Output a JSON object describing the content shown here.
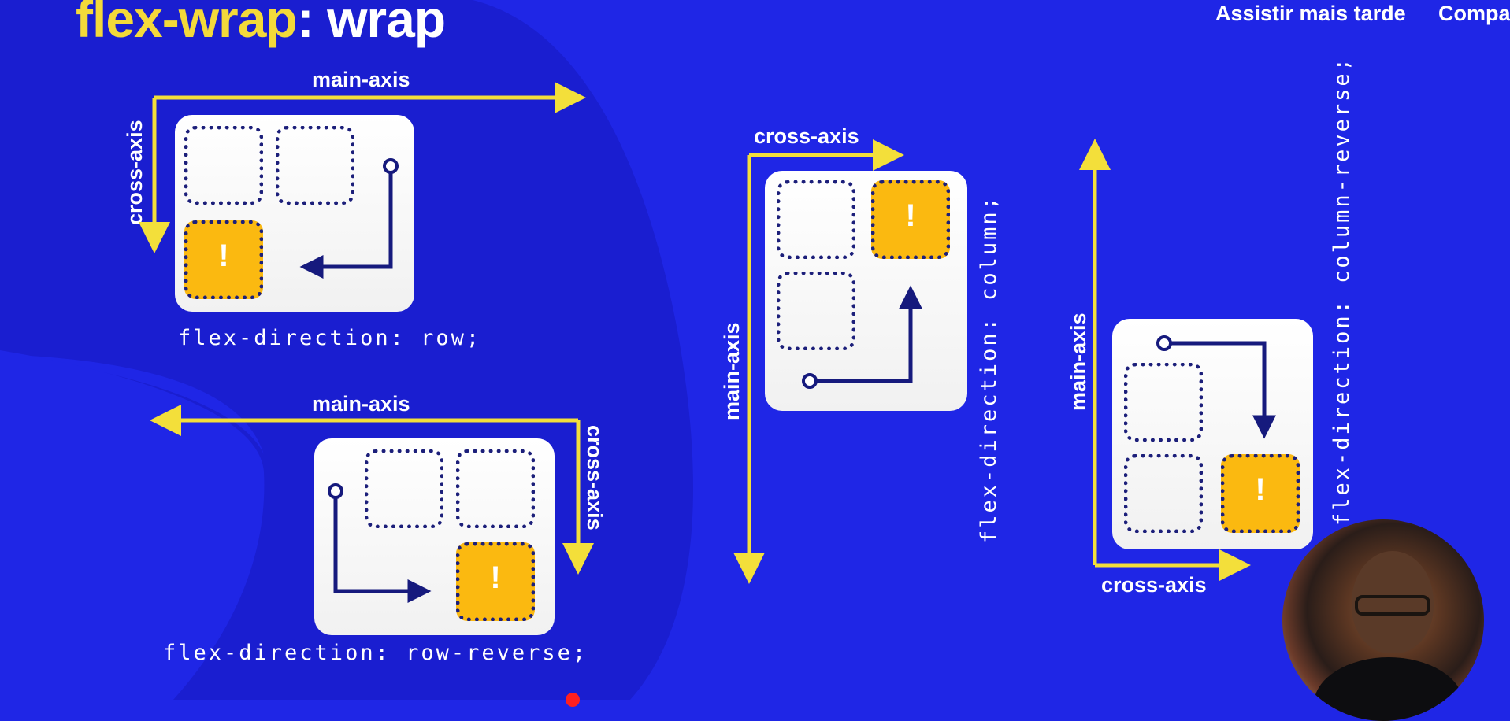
{
  "colors": {
    "background": "#1f26e6",
    "dark_blob": "#1a1ed0",
    "axis_yellow": "#f3df3a",
    "card": "#ffffff",
    "dotted_border": "#1c1f7a",
    "highlight_cell": "#fbb910",
    "flow_arrow": "#161a7d"
  },
  "header": {
    "title_property": "flex-wrap",
    "title_colon": ":",
    "title_value": "wrap"
  },
  "video_overlay": {
    "watch_later": "Assistir mais tarde",
    "share": "Compa"
  },
  "diagrams": {
    "row": {
      "main_axis": "main-axis",
      "cross_axis": "cross-axis",
      "code": "flex-direction: row;",
      "marker": "!"
    },
    "row_reverse": {
      "main_axis": "main-axis",
      "cross_axis": "cross-axis",
      "code": "flex-direction: row-reverse;",
      "marker": "!"
    },
    "column": {
      "main_axis": "main-axis",
      "cross_axis": "cross-axis",
      "code": "flex-direction: column;",
      "marker": "!"
    },
    "column_reverse": {
      "main_axis": "main-axis",
      "cross_axis": "cross-axis",
      "code": "flex-direction: column-reverse;",
      "marker": "!"
    }
  },
  "presenter": {
    "icon": "presenter-webcam"
  }
}
